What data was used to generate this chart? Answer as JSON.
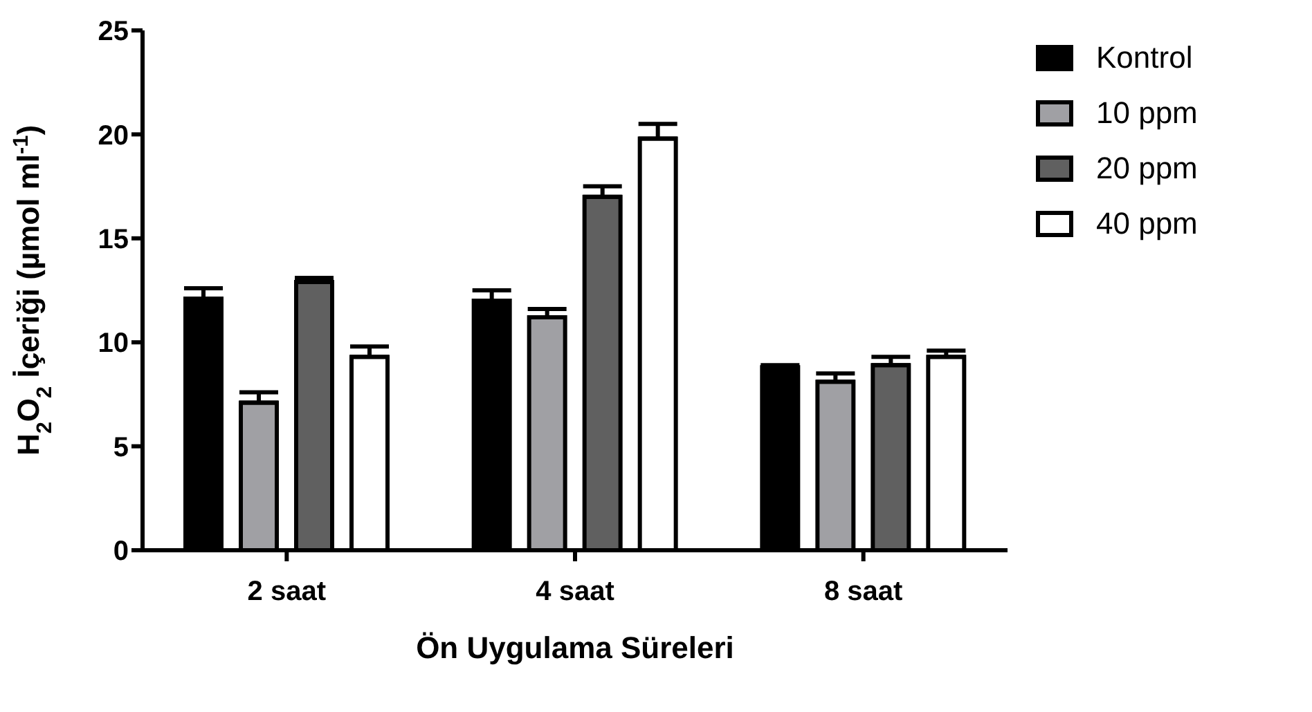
{
  "chart_data": {
    "type": "bar",
    "xlabel": "Ön Uygulama Süreleri",
    "ylabel": "H$_{2}$O$_{2}$ İçeriği (µmol ml$^{-1}$)",
    "categories": [
      "2 saat",
      "4 saat",
      "8 saat"
    ],
    "series": [
      {
        "name": "Kontrol",
        "color": "#000000",
        "values": [
          12.1,
          12.0,
          8.8
        ],
        "errors": [
          0.5,
          0.5,
          0.1
        ]
      },
      {
        "name": "10 ppm",
        "color": "#a0a0a4",
        "values": [
          7.1,
          11.2,
          8.1
        ],
        "errors": [
          0.5,
          0.4,
          0.4
        ]
      },
      {
        "name": "20 ppm",
        "color": "#606060",
        "values": [
          12.9,
          17.0,
          8.9
        ],
        "errors": [
          0.2,
          0.5,
          0.4
        ]
      },
      {
        "name": "40 ppm",
        "color": "#ffffff",
        "values": [
          9.3,
          19.8,
          9.3
        ],
        "errors": [
          0.5,
          0.7,
          0.3
        ]
      }
    ],
    "ylim": [
      0,
      25
    ],
    "yticks": [
      0,
      5,
      10,
      15,
      20,
      25
    ],
    "grid": false,
    "legend": "top right"
  }
}
